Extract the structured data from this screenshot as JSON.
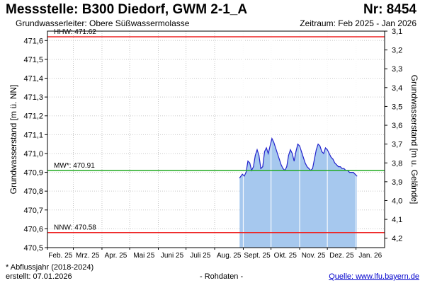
{
  "header": {
    "title": "Messstelle: B300 Diedorf, GWM 2-1_A",
    "nr": "Nr: 8454",
    "aquifer": "Grundwasserleiter:  Obere Süßwassermolasse",
    "period": "Zeitraum: Feb 2025 - Jan 2026"
  },
  "footer": {
    "footnote": "* Abflussjahr (2018-2024)",
    "created": "erstellt:  07.01.2026",
    "rawdata": "- Rohdaten -",
    "source": "Quelle: www.lfu.bayern.de"
  },
  "chart_data": {
    "type": "area",
    "title": "Messstelle: B300 Diedorf, GWM 2-1_A",
    "ylabel": "Grundwasserstand [m ü. NN]",
    "y2label": "Grundwasserstand [m u. Gelände]",
    "ylim": [
      470.5,
      471.65
    ],
    "y2lim": [
      3.1,
      4.25
    ],
    "yticks": [
      "470,5",
      "470,6",
      "470,7",
      "470,8",
      "470,9",
      "471,0",
      "471,1",
      "471,2",
      "471,3",
      "471,4",
      "471,5",
      "471,6"
    ],
    "y2ticks": [
      "3,1",
      "3,2",
      "3,3",
      "3,4",
      "3,5",
      "3,6",
      "3,7",
      "3,8",
      "3,9",
      "4,0",
      "4,1",
      "4,2"
    ],
    "xticks": [
      "Feb. 25",
      "Mrz. 25",
      "Apr. 25",
      "Mai 25",
      "Juni 25",
      "Juli 25",
      "Aug. 25",
      "Sept. 25",
      "Okt. 25",
      "Nov. 25",
      "Dez. 25",
      "Jan. 26"
    ],
    "reference_lines": [
      {
        "label": "HHW: 471.62",
        "value": 471.62,
        "color": "#ee2222"
      },
      {
        "label": "MW*: 470.91",
        "value": 470.91,
        "color": "#22aa22"
      },
      {
        "label": "NNW: 470.58",
        "value": 470.58,
        "color": "#ee2222"
      }
    ],
    "series": [
      {
        "color": "#2222cc",
        "fill": "#a6c8ee",
        "x": [
          "2025-08-28",
          "2025-08-31",
          "2025-09-02",
          "2025-09-04",
          "2025-09-06",
          "2025-09-08",
          "2025-09-10",
          "2025-09-12",
          "2025-09-14",
          "2025-09-16",
          "2025-09-18",
          "2025-09-20",
          "2025-09-22",
          "2025-09-24",
          "2025-09-26",
          "2025-09-28",
          "2025-09-30",
          "2025-10-02",
          "2025-10-04",
          "2025-10-06",
          "2025-10-08",
          "2025-10-10",
          "2025-10-12",
          "2025-10-14",
          "2025-10-16",
          "2025-10-18",
          "2025-10-20",
          "2025-10-22",
          "2025-10-24",
          "2025-10-26",
          "2025-10-28",
          "2025-10-30",
          "2025-11-01",
          "2025-11-03",
          "2025-11-05",
          "2025-11-07",
          "2025-11-09",
          "2025-11-11",
          "2025-11-13",
          "2025-11-15",
          "2025-11-17",
          "2025-11-19",
          "2025-11-21",
          "2025-11-23",
          "2025-11-25",
          "2025-11-27",
          "2025-11-29",
          "2025-12-01",
          "2025-12-03",
          "2025-12-05",
          "2025-12-07",
          "2025-12-09",
          "2025-12-11",
          "2025-12-13",
          "2025-12-15",
          "2025-12-17",
          "2025-12-19",
          "2025-12-21",
          "2025-12-23",
          "2025-12-25",
          "2025-12-27",
          "2025-12-29",
          "2025-12-31",
          "2026-01-02"
        ],
        "values": [
          470.87,
          470.89,
          470.88,
          470.9,
          470.96,
          470.95,
          470.91,
          470.93,
          470.99,
          471.02,
          470.99,
          470.92,
          470.93,
          471.01,
          471.03,
          471.0,
          471.04,
          471.08,
          471.06,
          471.03,
          471.0,
          470.97,
          470.94,
          470.92,
          470.91,
          470.93,
          470.99,
          471.02,
          471.0,
          470.96,
          471.01,
          471.05,
          471.04,
          471.01,
          470.98,
          470.95,
          470.93,
          470.92,
          470.91,
          470.92,
          470.97,
          471.02,
          471.05,
          471.04,
          471.01,
          471.0,
          471.03,
          471.02,
          471.0,
          470.98,
          470.97,
          470.95,
          470.94,
          470.93,
          470.93,
          470.92,
          470.92,
          470.91,
          470.91,
          470.9,
          470.9,
          470.9,
          470.89,
          470.88
        ]
      }
    ],
    "grid": true,
    "legend": "none"
  }
}
